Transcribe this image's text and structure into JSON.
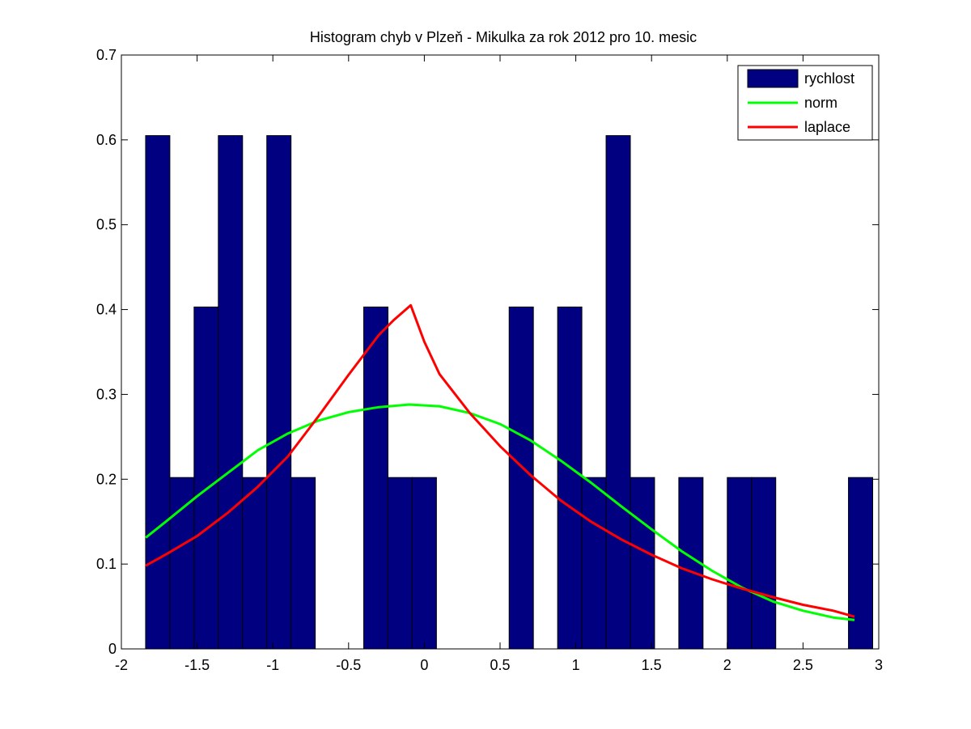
{
  "chart_data": {
    "type": "bar",
    "title": "Histogram chyb v Plzeň - Mikulka za rok 2012 pro 10. mesic",
    "xlim": [
      -2,
      3
    ],
    "ylim": [
      0,
      0.7
    ],
    "xticks": [
      "-2",
      "-1.5",
      "-1",
      "-0.5",
      "0",
      "0.5",
      "1",
      "1.5",
      "2",
      "2.5",
      "3"
    ],
    "yticks": [
      "0",
      "0.1",
      "0.2",
      "0.3",
      "0.4",
      "0.5",
      "0.6",
      "0.7"
    ],
    "legend_position": "top-right",
    "colors": {
      "bars": "#000080",
      "norm": "#00ff00",
      "laplace": "#ff0000"
    },
    "bins": {
      "x0": -1.84,
      "width": 0.16,
      "values": [
        0.605,
        0.202,
        0.403,
        0.605,
        0.202,
        0.605,
        0.202,
        0,
        0,
        0.403,
        0.202,
        0.202,
        0,
        0,
        0,
        0.403,
        0,
        0.403,
        0.202,
        0.605,
        0.202,
        0,
        0.202,
        0,
        0.202,
        0.202,
        0,
        0,
        0,
        0.202
      ]
    },
    "series": [
      {
        "name": "rychlost",
        "type": "bar"
      },
      {
        "name": "norm",
        "type": "line",
        "x": [
          -1.84,
          -1.7,
          -1.5,
          -1.3,
          -1.1,
          -0.9,
          -0.7,
          -0.5,
          -0.3,
          -0.1,
          0.1,
          0.3,
          0.5,
          0.7,
          0.9,
          1.1,
          1.3,
          1.5,
          1.7,
          1.9,
          2.1,
          2.3,
          2.5,
          2.7,
          2.84
        ],
        "y": [
          0.131,
          0.151,
          0.18,
          0.207,
          0.234,
          0.254,
          0.269,
          0.279,
          0.285,
          0.288,
          0.286,
          0.278,
          0.265,
          0.246,
          0.222,
          0.196,
          0.168,
          0.141,
          0.115,
          0.092,
          0.072,
          0.056,
          0.045,
          0.037,
          0.034
        ]
      },
      {
        "name": "laplace",
        "type": "line",
        "x": [
          -1.84,
          -1.7,
          -1.5,
          -1.3,
          -1.1,
          -0.9,
          -0.7,
          -0.5,
          -0.3,
          -0.2,
          -0.09,
          0.0,
          0.1,
          0.3,
          0.5,
          0.7,
          0.9,
          1.1,
          1.3,
          1.5,
          1.7,
          1.9,
          2.1,
          2.3,
          2.5,
          2.7,
          2.84
        ],
        "y": [
          0.098,
          0.112,
          0.133,
          0.16,
          0.191,
          0.227,
          0.274,
          0.323,
          0.37,
          0.388,
          0.405,
          0.362,
          0.324,
          0.278,
          0.239,
          0.205,
          0.175,
          0.15,
          0.129,
          0.111,
          0.095,
          0.082,
          0.071,
          0.061,
          0.052,
          0.045,
          0.038
        ]
      }
    ]
  }
}
